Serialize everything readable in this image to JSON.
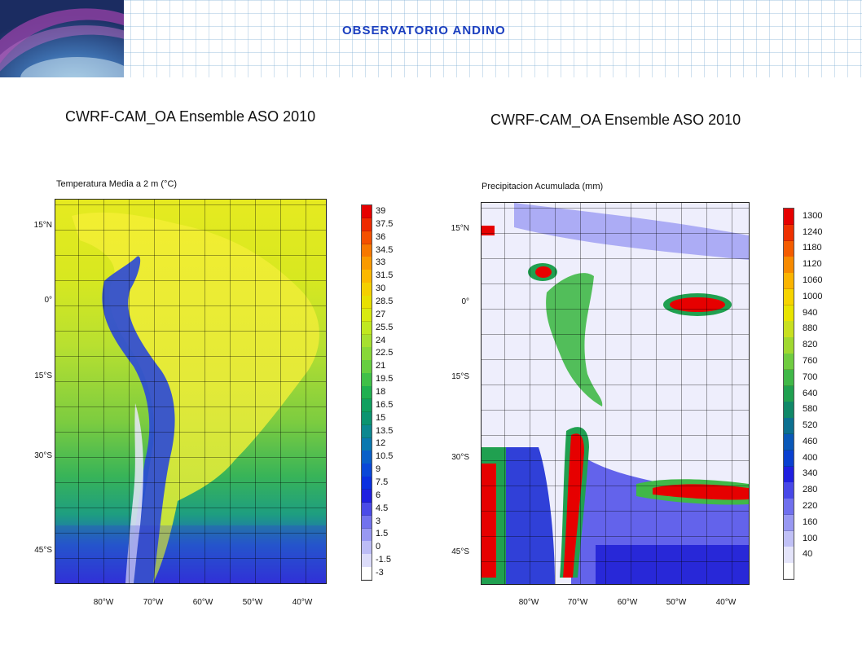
{
  "header": {
    "title": "OBSERVATORIO ANDINO"
  },
  "maps": [
    {
      "title": "CWRF-CAM_OA Ensemble ASO 2010",
      "subtitle": "Temperatura Media a 2 m  (°C)",
      "lat_labels": [
        "15°N",
        "0°",
        "15°S",
        "30°S",
        "45°S"
      ],
      "lon_labels": [
        "80°W",
        "70°W",
        "60°W",
        "50°W",
        "40°W"
      ],
      "colorbar_labels": [
        "39",
        "37.5",
        "36",
        "34.5",
        "33",
        "31.5",
        "30",
        "28.5",
        "27",
        "25.5",
        "24",
        "22.5",
        "21",
        "19.5",
        "18",
        "16.5",
        "15",
        "13.5",
        "12",
        "10.5",
        "9",
        "7.5",
        "6",
        "4.5",
        "3",
        "1.5",
        "0",
        "-1.5",
        "-3"
      ],
      "colorbar_colors": [
        "#e60000",
        "#ee2a00",
        "#f45000",
        "#f77800",
        "#fa9a00",
        "#fcb800",
        "#f5d000",
        "#e8e000",
        "#d8ea10",
        "#c0e820",
        "#a6e030",
        "#88d838",
        "#66ce40",
        "#40c048",
        "#20b050",
        "#10a060",
        "#0c9470",
        "#0c8890",
        "#0a78b0",
        "#0a60c8",
        "#0a48d8",
        "#0a30e0",
        "#2020e0",
        "#4a4ae8",
        "#7272ee",
        "#9898f2",
        "#bcbcf6",
        "#dcdcfa",
        "#ffffff"
      ]
    },
    {
      "title": "CWRF-CAM_OA Ensemble ASO 2010",
      "subtitle": "Precipitacion Acumulada   (mm)",
      "lat_labels": [
        "15°N",
        "0°",
        "15°S",
        "30°S",
        "45°S"
      ],
      "lon_labels": [
        "80°W",
        "70°W",
        "60°W",
        "50°W",
        "40°W"
      ],
      "colorbar_labels": [
        "1300",
        "1240",
        "1180",
        "1120",
        "1060",
        "1000",
        "940",
        "880",
        "820",
        "760",
        "700",
        "640",
        "580",
        "520",
        "460",
        "400",
        "340",
        "280",
        "220",
        "160",
        "100",
        "40"
      ],
      "colorbar_colors": [
        "#e60000",
        "#ee3000",
        "#f45c00",
        "#f78a00",
        "#fab400",
        "#f6d400",
        "#e8e400",
        "#c8e020",
        "#a0d830",
        "#70cc40",
        "#40b848",
        "#20a050",
        "#108868",
        "#0c7090",
        "#0a58b8",
        "#0a40d0",
        "#2020e0",
        "#4848e8",
        "#7070ee",
        "#9898f2",
        "#c0c0f6",
        "#e4e4fa",
        "#ffffff"
      ]
    }
  ]
}
